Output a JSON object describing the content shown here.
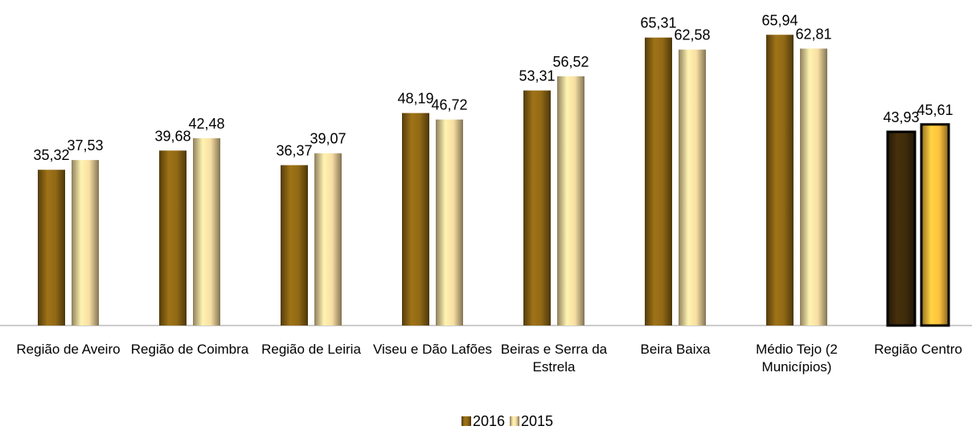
{
  "chart_data": {
    "type": "bar",
    "categories": [
      "Região de Aveiro",
      "Região de Coimbra",
      "Região de Leiria",
      "Viseu e Dão Lafões",
      "Beiras e Serra da Estrela",
      "Beira Baixa",
      "Médio Tejo (2 Municípios)",
      "Região Centro"
    ],
    "series": [
      {
        "name": "2016",
        "color": "#8a6414",
        "colors": [
          "#8a6414",
          "#8a6414",
          "#8a6414",
          "#8a6414",
          "#8a6414",
          "#8a6414",
          "#8a6414",
          "#3d2a0a"
        ],
        "values": [
          35.32,
          39.68,
          36.37,
          48.19,
          53.31,
          65.31,
          65.94,
          43.93
        ],
        "value_labels": [
          "35,32",
          "39,68",
          "36,37",
          "48,19",
          "53,31",
          "65,31",
          "65,94",
          "43,93"
        ]
      },
      {
        "name": "2015",
        "color": "#ecd39a",
        "colors": [
          "#ecd39a",
          "#ecd39a",
          "#ecd39a",
          "#ecd39a",
          "#ecd39a",
          "#ecd39a",
          "#ecd39a",
          "#f5b83a"
        ],
        "values": [
          37.53,
          42.48,
          39.07,
          46.72,
          56.52,
          62.58,
          62.81,
          45.61
        ],
        "value_labels": [
          "37,53",
          "42,48",
          "39,07",
          "46,72",
          "56,52",
          "62,58",
          "62,81",
          "45,61"
        ]
      }
    ],
    "ylim": [
      0,
      70
    ],
    "legend": "bottom"
  }
}
